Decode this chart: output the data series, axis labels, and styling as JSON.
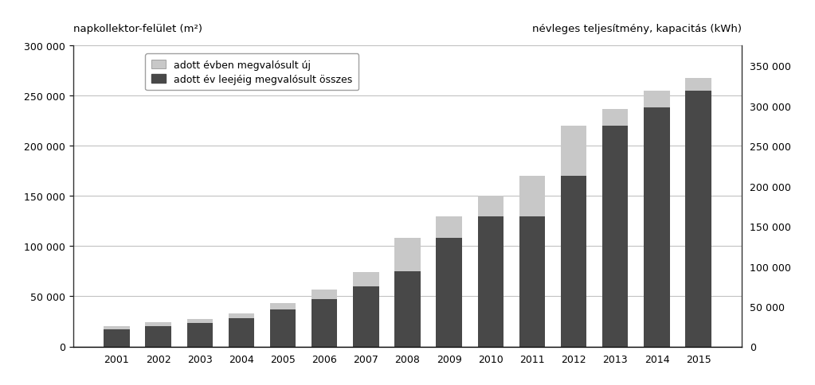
{
  "years": [
    2001,
    2002,
    2003,
    2004,
    2005,
    2006,
    2007,
    2008,
    2009,
    2010,
    2011,
    2012,
    2013,
    2014,
    2015
  ],
  "dark_values": [
    17000,
    20000,
    23000,
    28000,
    37000,
    47000,
    60000,
    75000,
    108000,
    130000,
    130000,
    170000,
    220000,
    238000,
    255000
  ],
  "light_extra": [
    3000,
    4000,
    4000,
    5000,
    6000,
    10000,
    14000,
    33000,
    22000,
    20000,
    40000,
    50000,
    17000,
    17000,
    13000
  ],
  "left_label": "napkollektor-felület (m²)",
  "right_label": "névleges teljesítmény, kapacitás (kWh)",
  "legend_light": "adott évben megvalósult új",
  "legend_dark": "adott év leejéig megvalósult összes",
  "ylim_left": [
    0,
    300000
  ],
  "ylim_right": [
    0,
    375000
  ],
  "yticks_left": [
    0,
    50000,
    100000,
    150000,
    200000,
    250000,
    300000
  ],
  "yticks_right": [
    0,
    50000,
    100000,
    150000,
    200000,
    250000,
    300000,
    350000
  ],
  "color_dark": "#484848",
  "color_light": "#c8c8c8",
  "bar_width": 0.62,
  "background_color": "#ffffff",
  "grid_color": "#bbbbbb"
}
